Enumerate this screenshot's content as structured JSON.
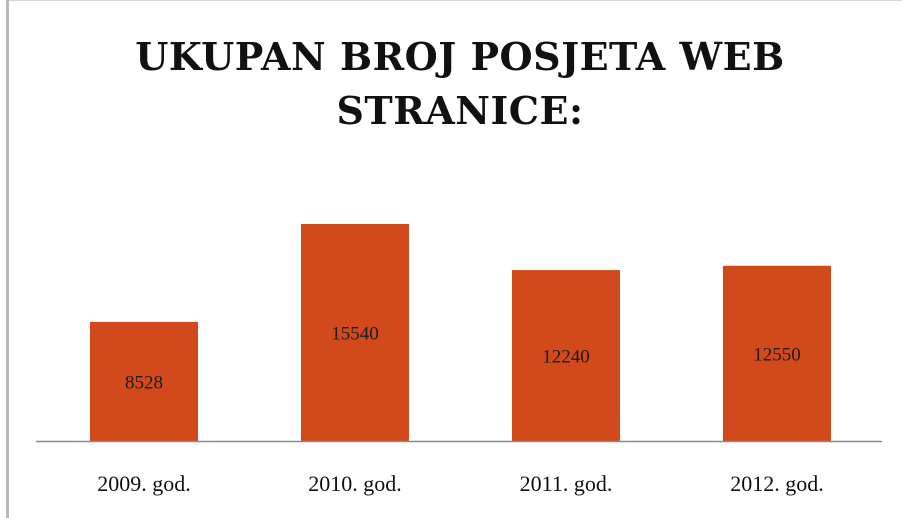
{
  "colors": {
    "bar": "#d24a1c",
    "axis": "#8c8c8c",
    "background": "#ffffff"
  },
  "chart_data": {
    "type": "bar",
    "title": "UKUPAN BROJ POSJETA WEB STRANICE:",
    "title_lines": [
      "UKUPAN BROJ POSJETA WEB",
      "STRANICE:"
    ],
    "categories": [
      "2009. god.",
      "2010. god.",
      "2011. god.",
      "2012. god."
    ],
    "values": [
      8528,
      15540,
      12240,
      12550
    ],
    "data_labels": [
      "8528",
      "15540",
      "12240",
      "12550"
    ],
    "xlabel": "",
    "ylabel": "",
    "ylim": [
      0,
      20000
    ],
    "grid": false,
    "legend": "none"
  }
}
